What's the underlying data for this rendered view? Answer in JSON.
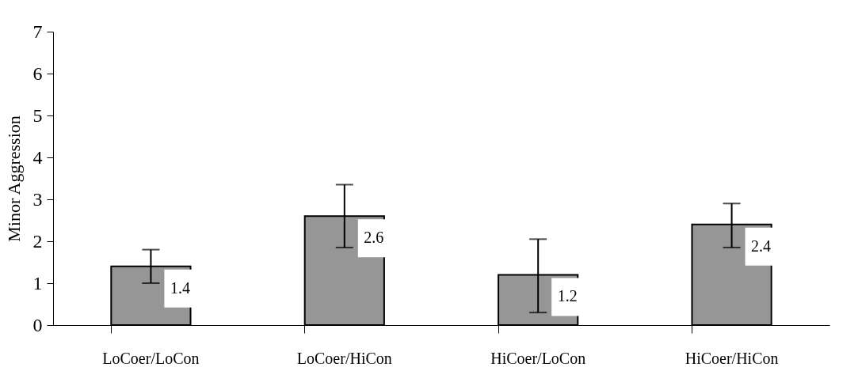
{
  "chart_data": {
    "type": "bar",
    "ylabel": "Minor Aggression",
    "categories": [
      "LoCoer/LoCon",
      "LoCoer/HiCon",
      "HiCoer/LoCon",
      "HiCoer/HiCon"
    ],
    "values": [
      1.4,
      2.6,
      1.2,
      2.4
    ],
    "color": "#969696",
    "errors": [
      [
        1.0,
        1.8
      ],
      [
        1.85,
        3.35
      ],
      [
        0.3,
        2.05
      ],
      [
        1.85,
        2.9
      ]
    ],
    "ylim": [
      0,
      7
    ],
    "yticks": [
      0,
      1,
      2,
      3,
      4,
      5,
      6,
      7
    ],
    "grid": false,
    "data_labels": true
  }
}
